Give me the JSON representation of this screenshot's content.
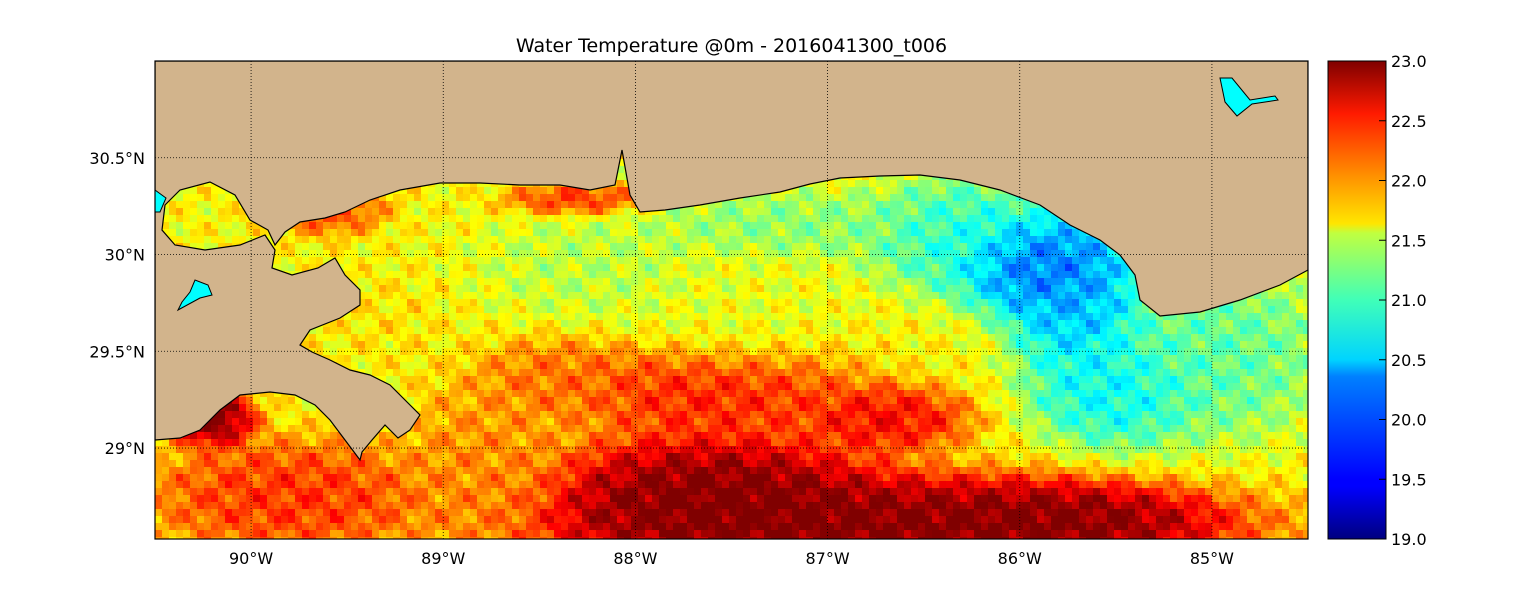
{
  "chart_data": {
    "type": "heatmap",
    "title": "Water Temperature @0m - 2016041300_t006",
    "xlabel": "",
    "ylabel": "",
    "xlim": [
      -90.5,
      -84.5
    ],
    "ylim": [
      28.53,
      31.0
    ],
    "x_ticks": [
      {
        "value": -90,
        "label": "90°W"
      },
      {
        "value": -89,
        "label": "89°W"
      },
      {
        "value": -88,
        "label": "88°W"
      },
      {
        "value": -87,
        "label": "87°W"
      },
      {
        "value": -86,
        "label": "86°W"
      },
      {
        "value": -85,
        "label": "85°W"
      }
    ],
    "y_ticks": [
      {
        "value": 29.0,
        "label": "29°N"
      },
      {
        "value": 29.5,
        "label": "29.5°N"
      },
      {
        "value": 30.0,
        "label": "30°N"
      },
      {
        "value": 30.5,
        "label": "30.5°N"
      }
    ],
    "grid": true,
    "colormap": "jet",
    "land_color": "#d2b48c",
    "lake_color": "#00ffff",
    "colorbar": {
      "min": 19.0,
      "max": 23.0,
      "ticks": [
        {
          "value": 19.0,
          "label": "19.0"
        },
        {
          "value": 19.5,
          "label": "19.5"
        },
        {
          "value": 20.0,
          "label": "20.0"
        },
        {
          "value": 20.5,
          "label": "20.5"
        },
        {
          "value": 21.0,
          "label": "21.0"
        },
        {
          "value": 21.5,
          "label": "21.5"
        },
        {
          "value": 22.0,
          "label": "22.0"
        },
        {
          "value": 22.5,
          "label": "22.5"
        },
        {
          "value": 23.0,
          "label": "23.0"
        }
      ]
    },
    "temperature_features": [
      {
        "lon": -85.9,
        "lat": 29.95,
        "temp": 19.7,
        "sx": 0.3,
        "sy": 0.18
      },
      {
        "lon": -85.7,
        "lat": 29.75,
        "temp": 20.1,
        "sx": 0.25,
        "sy": 0.25
      },
      {
        "lon": -86.3,
        "lat": 30.1,
        "temp": 20.6,
        "sx": 0.35,
        "sy": 0.2
      },
      {
        "lon": -85.5,
        "lat": 29.3,
        "temp": 20.4,
        "sx": 0.3,
        "sy": 0.2
      },
      {
        "lon": -85.0,
        "lat": 29.5,
        "temp": 20.8,
        "sx": 0.4,
        "sy": 0.3
      },
      {
        "lon": -87.2,
        "lat": 30.15,
        "temp": 21.0,
        "sx": 0.5,
        "sy": 0.12
      },
      {
        "lon": -88.2,
        "lat": 29.95,
        "temp": 21.2,
        "sx": 0.4,
        "sy": 0.2
      },
      {
        "lon": -87.5,
        "lat": 29.7,
        "temp": 21.4,
        "sx": 0.4,
        "sy": 0.25
      },
      {
        "lon": -89.3,
        "lat": 29.65,
        "temp": 21.6,
        "sx": 0.2,
        "sy": 0.15
      },
      {
        "lon": -89.6,
        "lat": 30.25,
        "temp": 22.3,
        "sx": 0.2,
        "sy": 0.1
      },
      {
        "lon": -88.3,
        "lat": 30.28,
        "temp": 22.4,
        "sx": 0.25,
        "sy": 0.06
      },
      {
        "lon": -87.6,
        "lat": 29.3,
        "temp": 22.5,
        "sx": 0.5,
        "sy": 0.18
      },
      {
        "lon": -86.7,
        "lat": 29.15,
        "temp": 22.6,
        "sx": 0.3,
        "sy": 0.12
      },
      {
        "lon": -88.4,
        "lat": 29.35,
        "temp": 22.1,
        "sx": 0.3,
        "sy": 0.15
      },
      {
        "lon": -89.8,
        "lat": 28.75,
        "temp": 22.4,
        "sx": 0.5,
        "sy": 0.2
      },
      {
        "lon": -86.7,
        "lat": 28.6,
        "temp": 23.2,
        "sx": 1.2,
        "sy": 0.18
      },
      {
        "lon": -87.6,
        "lat": 28.75,
        "temp": 23.2,
        "sx": 0.6,
        "sy": 0.22
      },
      {
        "lon": -85.8,
        "lat": 28.62,
        "temp": 23.1,
        "sx": 0.5,
        "sy": 0.12
      },
      {
        "lon": -90.2,
        "lat": 29.15,
        "temp": 23.2,
        "sx": 0.15,
        "sy": 0.1
      },
      {
        "lon": -89.9,
        "lat": 29.45,
        "temp": 23.2,
        "sx": 0.1,
        "sy": 0.08
      },
      {
        "lon": -88.8,
        "lat": 28.9,
        "temp": 22.0,
        "sx": 0.3,
        "sy": 0.3
      }
    ]
  }
}
